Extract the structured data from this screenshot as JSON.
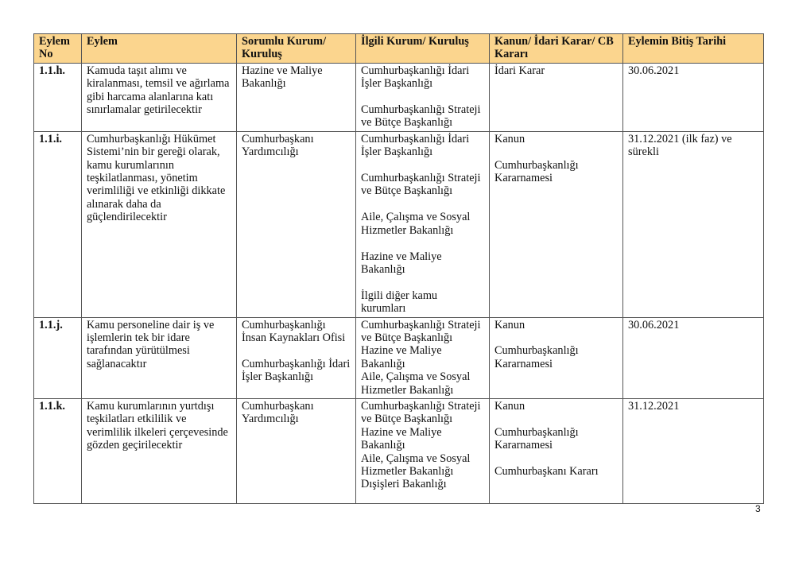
{
  "table": {
    "headers": [
      "Eylem\nNo",
      "Eylem",
      "Sorumlu Kurum/\nKuruluş",
      "İlgili Kurum/ Kuruluş",
      "Kanun/ İdari Karar/ CB\nKararı",
      "Eylemin Bitiş Tarihi"
    ],
    "header_color": "#fbd58e",
    "rows": [
      [
        "1.1.h.",
        "Kamuda taşıt alımı ve\nkiralanması, temsil ve ağırlama\ngibi harcama alanlarına katı\nsınırlamalar getirilecektir",
        "Hazine ve Maliye\nBakanlığı",
        "Cumhurbaşkanlığı İdari\nİşler Başkanlığı\n\nCumhurbaşkanlığı Strateji\nve Bütçe Başkanlığı",
        "İdari Karar",
        "30.06.2021"
      ],
      [
        "1.1.i.",
        "Cumhurbaşkanlığı Hükümet\nSistemi’nin bir gereği olarak,\nkamu kurumlarının\nteşkilatlanması, yönetim\nverimliliği ve etkinliği dikkate\nalınarak daha da\ngüçlendirilecektir",
        "Cumhurbaşkanı\nYardımcılığı",
        "Cumhurbaşkanlığı İdari\nİşler Başkanlığı\n\nCumhurbaşkanlığı Strateji\nve Bütçe Başkanlığı\n\nAile, Çalışma ve Sosyal\nHizmetler Bakanlığı\n\nHazine ve Maliye\nBakanlığı\n\nİlgili diğer kamu\nkurumları",
        "Kanun\n\nCumhurbaşkanlığı\nKararnamesi",
        "31.12.2021 (ilk faz) ve\nsürekli"
      ],
      [
        "1.1.j.",
        "Kamu personeline dair iş ve\nişlemlerin tek bir idare\ntarafından yürütülmesi\nsağlanacaktır",
        "Cumhurbaşkanlığı\nİnsan Kaynakları Ofisi\n\nCumhurbaşkanlığı İdari\nİşler Başkanlığı",
        "Cumhurbaşkanlığı Strateji\nve Bütçe Başkanlığı\nHazine ve Maliye\nBakanlığı\nAile, Çalışma ve Sosyal\nHizmetler Bakanlığı",
        "Kanun\n\nCumhurbaşkanlığı\nKararnamesi",
        "30.06.2021"
      ],
      [
        "1.1.k.",
        "Kamu kurumlarının yurtdışı\nteşkilatları etkililik ve\nverimlilik ilkeleri çerçevesinde\ngözden geçirilecektir",
        "Cumhurbaşkanı\nYardımcılığı",
        "Cumhurbaşkanlığı Strateji\nve Bütçe Başkanlığı\nHazine ve Maliye\nBakanlığı\nAile, Çalışma ve Sosyal\nHizmetler Bakanlığı\nDışişleri Bakanlığı",
        "Kanun\n\nCumhurbaşkanlığı\nKararnamesi\n\nCumhurbaşkanı Kararı",
        "31.12.2021"
      ]
    ]
  },
  "page_number": "3"
}
